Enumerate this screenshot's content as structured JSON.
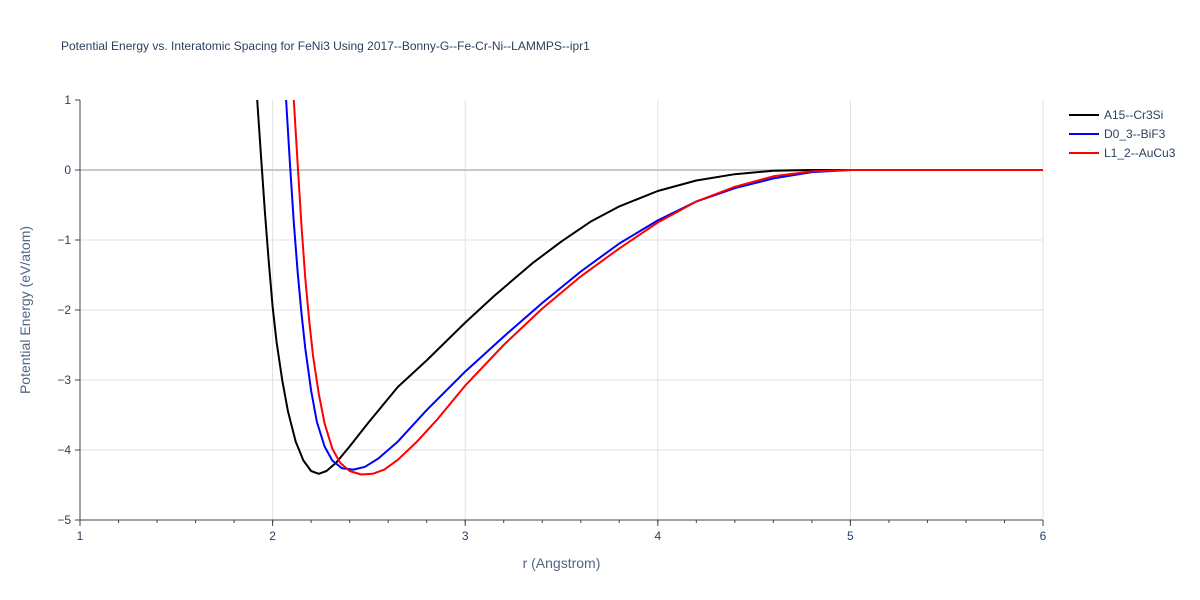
{
  "chart_data": {
    "type": "line",
    "title": "Potential Energy vs. Interatomic Spacing for FeNi3 Using 2017--Bonny-G--Fe-Cr-Ni--LAMMPS--ipr1",
    "xlabel": "r (Angstrom)",
    "ylabel": "Potential Energy (eV/atom)",
    "xlim": [
      1,
      6
    ],
    "ylim": [
      -5,
      1
    ],
    "x_ticks": [
      "1",
      "2",
      "3",
      "4",
      "5",
      "6"
    ],
    "y_ticks": [
      "1",
      "0",
      "−1",
      "−2",
      "−3",
      "−4",
      "−5"
    ],
    "x_tick_values": [
      1,
      2,
      3,
      4,
      5,
      6
    ],
    "y_tick_values": [
      1,
      0,
      -1,
      -2,
      -3,
      -4,
      -5
    ],
    "grid": true,
    "legend_position": "top-right",
    "series": [
      {
        "name": "A15--Cr3Si",
        "color": "#000000",
        "x": [
          1.92,
          1.94,
          1.96,
          1.98,
          2.0,
          2.02,
          2.05,
          2.08,
          2.12,
          2.16,
          2.2,
          2.24,
          2.28,
          2.33,
          2.4,
          2.5,
          2.65,
          2.8,
          3.0,
          3.15,
          3.35,
          3.5,
          3.65,
          3.8,
          4.0,
          4.2,
          4.4,
          4.6,
          4.8,
          5.0,
          6.0
        ],
        "y": [
          1.0,
          0.2,
          -0.6,
          -1.3,
          -1.95,
          -2.45,
          -3.0,
          -3.45,
          -3.88,
          -4.15,
          -4.3,
          -4.34,
          -4.3,
          -4.18,
          -3.95,
          -3.6,
          -3.1,
          -2.72,
          -2.18,
          -1.8,
          -1.33,
          -1.02,
          -0.74,
          -0.52,
          -0.3,
          -0.15,
          -0.06,
          -0.01,
          0.0,
          0.0,
          0.0
        ]
      },
      {
        "name": "D0_3--BiF3",
        "color": "#0000ff",
        "x": [
          2.07,
          2.09,
          2.11,
          2.13,
          2.15,
          2.17,
          2.2,
          2.23,
          2.27,
          2.31,
          2.36,
          2.42,
          2.48,
          2.55,
          2.65,
          2.8,
          3.0,
          3.2,
          3.4,
          3.6,
          3.8,
          4.0,
          4.2,
          4.4,
          4.6,
          4.8,
          5.0,
          6.0
        ],
        "y": [
          1.0,
          0.1,
          -0.75,
          -1.45,
          -2.05,
          -2.55,
          -3.15,
          -3.6,
          -3.95,
          -4.15,
          -4.26,
          -4.28,
          -4.24,
          -4.12,
          -3.88,
          -3.43,
          -2.88,
          -2.38,
          -1.9,
          -1.45,
          -1.05,
          -0.72,
          -0.45,
          -0.26,
          -0.12,
          -0.03,
          0.0,
          0.0
        ]
      },
      {
        "name": "L1_2--AuCu3",
        "color": "#ff0000",
        "x": [
          2.11,
          2.13,
          2.15,
          2.17,
          2.19,
          2.21,
          2.24,
          2.27,
          2.31,
          2.35,
          2.4,
          2.46,
          2.52,
          2.58,
          2.65,
          2.75,
          2.85,
          3.0,
          3.2,
          3.4,
          3.6,
          3.8,
          4.0,
          4.2,
          4.4,
          4.6,
          4.8,
          5.0,
          6.0
        ],
        "y": [
          1.0,
          0.1,
          -0.8,
          -1.55,
          -2.15,
          -2.65,
          -3.2,
          -3.62,
          -3.98,
          -4.18,
          -4.3,
          -4.35,
          -4.34,
          -4.28,
          -4.14,
          -3.88,
          -3.58,
          -3.08,
          -2.5,
          -1.98,
          -1.52,
          -1.12,
          -0.75,
          -0.45,
          -0.24,
          -0.09,
          -0.02,
          0.0,
          0.0
        ]
      }
    ]
  }
}
